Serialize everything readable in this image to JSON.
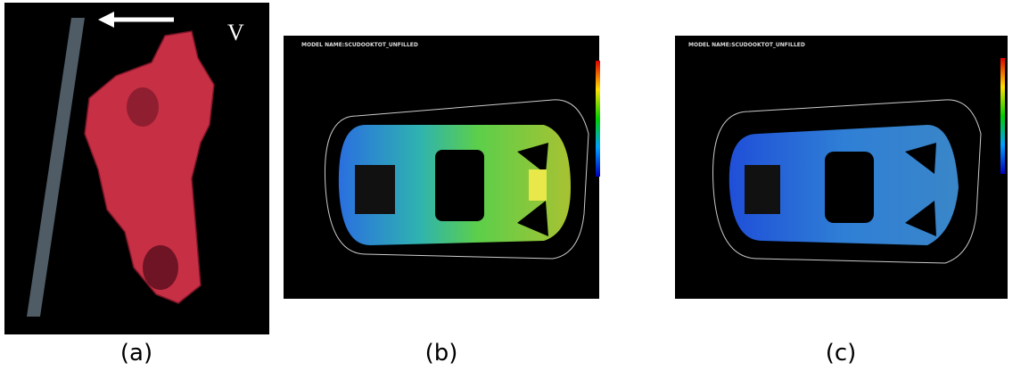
{
  "panels": [
    {
      "label": "(a)",
      "annotation": "V"
    },
    {
      "label": "(b)",
      "title": "MODEL NAME:SCUDOOKTOT_UNFILLED"
    },
    {
      "label": "(c)",
      "title": "MODEL NAME:SCUDOOKTOT_UNFILLED"
    }
  ]
}
